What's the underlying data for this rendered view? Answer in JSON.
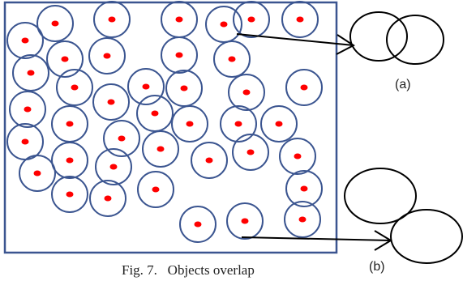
{
  "caption": "Fig. 7.   Objects overlap",
  "labels": {
    "a": "(a)",
    "b": "(b)"
  },
  "colors": {
    "frame": "#3b5590",
    "circle": "#3b5590",
    "dot": "#ff0000",
    "inset": "#000000",
    "arrow": "#000000"
  },
  "objects_in_frame": 44,
  "inset_circles": {
    "a": 2,
    "b": 2
  }
}
